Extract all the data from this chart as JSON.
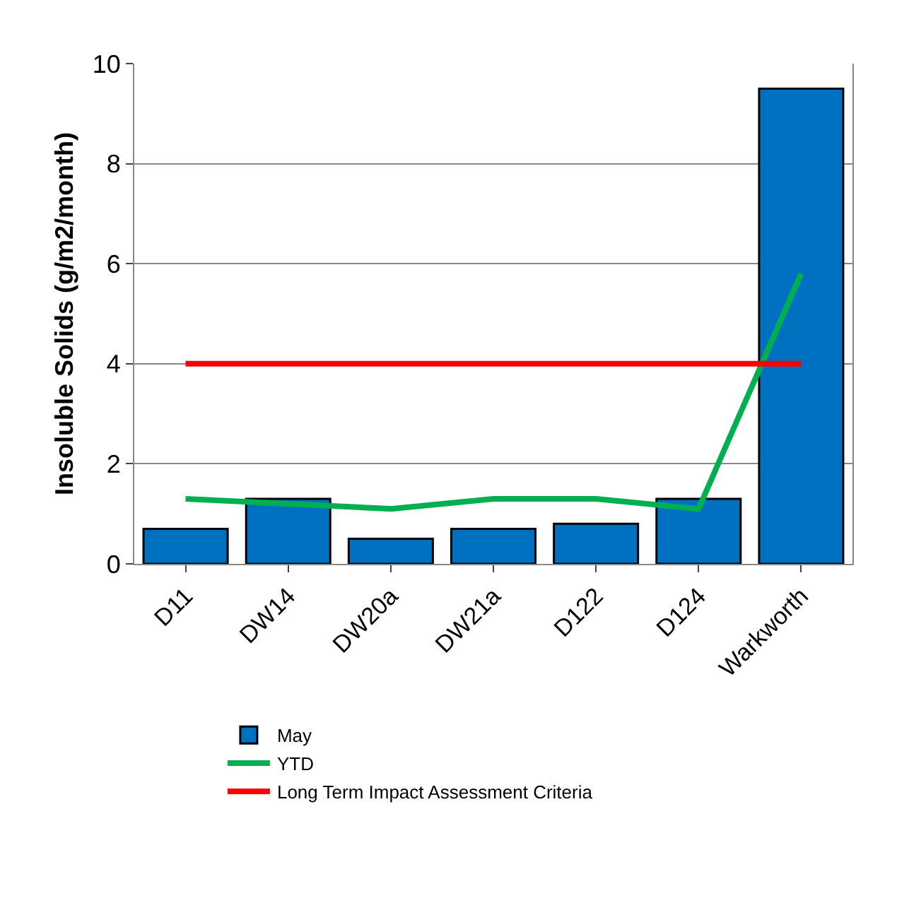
{
  "chart_data": {
    "type": "bar",
    "ylabel": "Insoluble Solids (g/m2/month)",
    "categories": [
      "D11",
      "DW14",
      "DW20a",
      "DW21a",
      "D122",
      "D124",
      "Warkworth"
    ],
    "series": [
      {
        "name": "May",
        "color": "#0070c0",
        "values": [
          0.7,
          1.3,
          0.5,
          0.7,
          0.8,
          1.3,
          9.5
        ]
      },
      {
        "name": "YTD",
        "type": "line",
        "color": "#00b050",
        "values": [
          1.3,
          1.2,
          1.1,
          1.3,
          1.3,
          1.1,
          5.8
        ]
      },
      {
        "name": "Long Term Impact Assessment Criteria",
        "type": "line",
        "color": "#ff0000",
        "values": [
          4,
          4,
          4,
          4,
          4,
          4,
          4
        ]
      }
    ],
    "ylim": [
      0,
      10
    ],
    "yticks": [
      0,
      2,
      4,
      6,
      8,
      10
    ],
    "grid": "y",
    "legend": "bottom"
  }
}
